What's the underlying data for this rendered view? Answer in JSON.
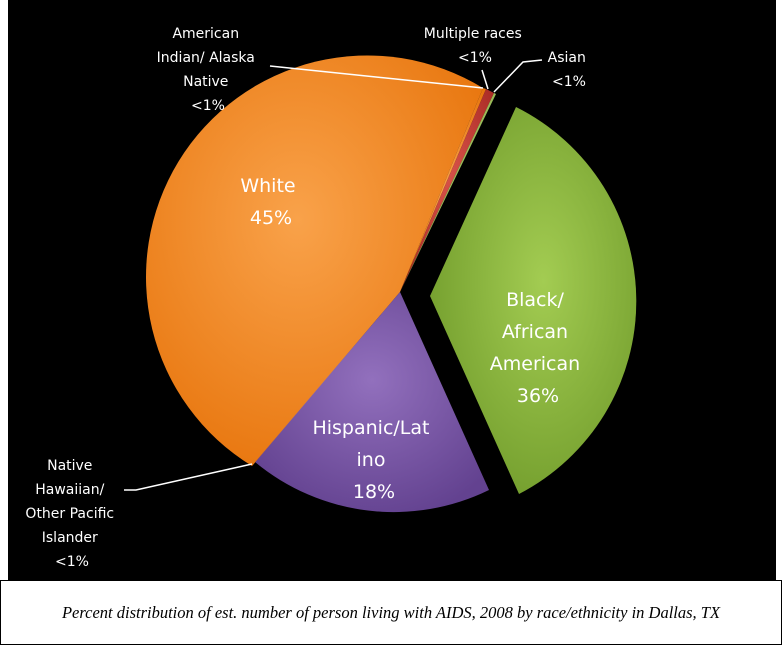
{
  "chart_data": {
    "type": "pie",
    "title": "",
    "slices": [
      {
        "label": "Multiple races",
        "value": 0.5,
        "display": "<1%",
        "color": "#c0392b"
      },
      {
        "label": "Asian",
        "value": 0.4,
        "display": "<1%",
        "color": "#9bbb59"
      },
      {
        "label": "Black/ African American",
        "value": 36,
        "display": "36%",
        "color": "#86b13a",
        "exploded": true
      },
      {
        "label": "Hispanic/Lat ino",
        "value": 18,
        "display": "18%",
        "color": "#7a55a3"
      },
      {
        "label": "Native Hawaiian/ Other Pacific Islander",
        "value": 0.1,
        "display": "<1%",
        "color": "#f08a24"
      },
      {
        "label": "White",
        "value": 45,
        "display": "45%",
        "color": "#f68b1f"
      },
      {
        "label": "American Indian/ Alaska Native",
        "value": 0.4,
        "display": "<1%",
        "color": "#f08a24"
      }
    ]
  },
  "caption": "Percent distribution of est. number of person living with AIDS, 2008 by race/ethnicity in Dallas, TX"
}
